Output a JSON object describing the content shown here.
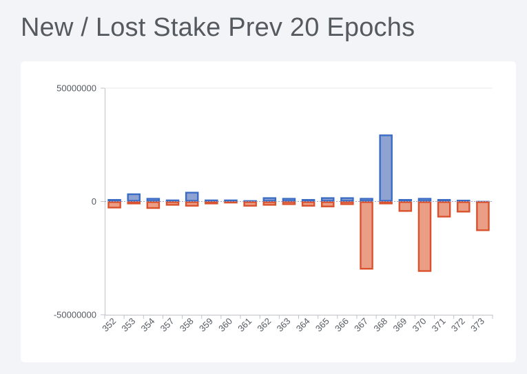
{
  "page": {
    "title": "New / Lost Stake Prev 20 Epochs"
  },
  "colors": {
    "new_stake_fill": "#8fa3d2",
    "new_stake_stroke": "#3b6cc4",
    "lost_stake_fill": "#eb9e86",
    "lost_stake_stroke": "#d9522d",
    "axis": "#bfc3c8",
    "grid": "#e6e8eb",
    "text": "#555a60"
  },
  "chart_data": {
    "type": "bar",
    "stacked": true,
    "title": "",
    "xlabel": "",
    "ylabel": "",
    "ylim": [
      -50000000,
      50000000
    ],
    "y_ticks": [
      50000000,
      0,
      -50000000
    ],
    "y_tick_labels": [
      "50000000",
      "0",
      "-50000000"
    ],
    "grid": "horizontal-top-only",
    "x_tick_rotation": "-45deg",
    "categories": [
      "352",
      "353",
      "354",
      "357",
      "358",
      "359",
      "360",
      "361",
      "362",
      "363",
      "364",
      "365",
      "366",
      "367",
      "368",
      "369",
      "370",
      "371",
      "372",
      "373"
    ],
    "series": [
      {
        "values": [
          1000000,
          3500000,
          1500000,
          800000,
          4200000,
          800000,
          800000,
          500000,
          1800000,
          1500000,
          1000000,
          1800000,
          1800000,
          1500000,
          29500000,
          1000000,
          1500000,
          1000000,
          700000,
          200000
        ]
      },
      {
        "values": [
          -3000000,
          -1200000,
          -3200000,
          -1800000,
          -2200000,
          -1200000,
          -800000,
          -2200000,
          -1800000,
          -1500000,
          -2200000,
          -2500000,
          -1500000,
          -30000000,
          -1200000,
          -4500000,
          -31000000,
          -7000000,
          -4800000,
          -13000000
        ]
      }
    ]
  }
}
